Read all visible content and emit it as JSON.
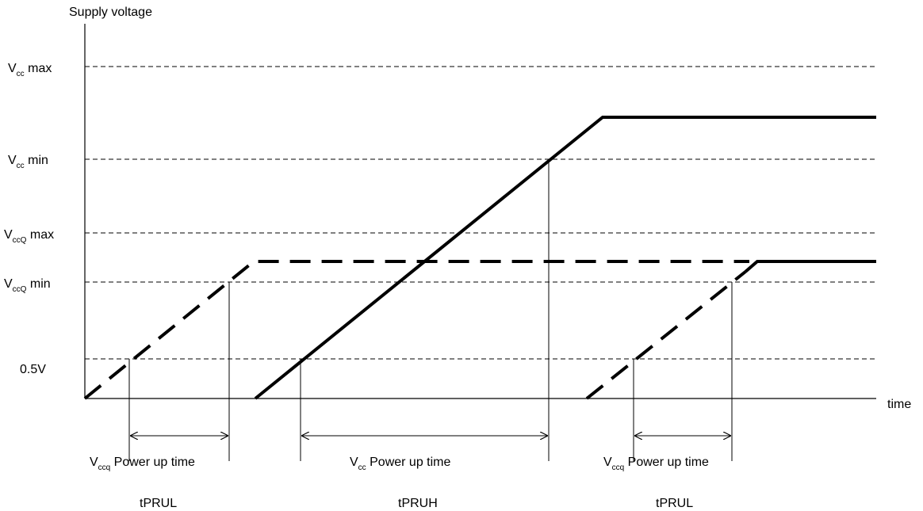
{
  "axes": {
    "y_title": "Supply voltage",
    "x_title": "time"
  },
  "levels": [
    {
      "id": "vcc-max",
      "label_main": "V",
      "label_sub": "cc",
      "label_rest": " max"
    },
    {
      "id": "vcc-min",
      "label_main": "V",
      "label_sub": "cc",
      "label_rest": " min"
    },
    {
      "id": "vccq-max",
      "label_main": "V",
      "label_sub": "ccQ",
      "label_rest": " max"
    },
    {
      "id": "vccq-min",
      "label_main": "V",
      "label_sub": "ccQ",
      "label_rest": " min"
    },
    {
      "id": "half-volt",
      "label_main": "0.5V",
      "label_sub": "",
      "label_rest": ""
    }
  ],
  "intervals": [
    {
      "id": "vccq-power-up-1",
      "label_main": "V",
      "label_sub": "ccq",
      "label_rest": " Power up time",
      "param": "tPRUL"
    },
    {
      "id": "vcc-power-up",
      "label_main": "V",
      "label_sub": "cc",
      "label_rest": " Power up time",
      "param": "tPRUH"
    },
    {
      "id": "vccq-power-up-2",
      "label_main": "V",
      "label_sub": "ccq",
      "label_rest": " Power up time",
      "param": "tPRUL"
    }
  ]
}
